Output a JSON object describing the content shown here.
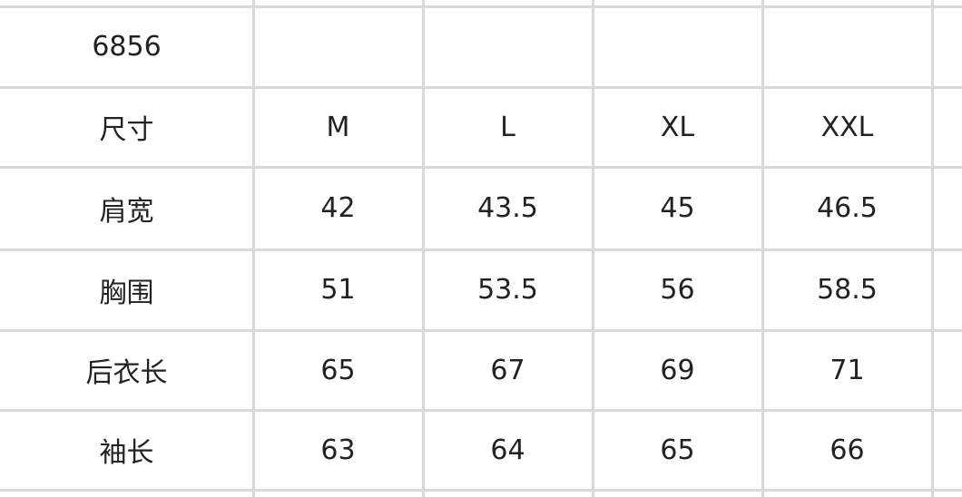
{
  "table": {
    "title": "6856",
    "header": [
      "尺寸",
      "M",
      "L",
      "XL",
      "XXL"
    ],
    "rows": [
      [
        "肩宽",
        "42",
        "43.5",
        "45",
        "46.5"
      ],
      [
        "胸围",
        "51",
        "53.5",
        "56",
        "58.5"
      ],
      [
        "后衣长",
        "65",
        "67",
        "69",
        "71"
      ],
      [
        "袖长",
        "63",
        "64",
        "65",
        "66"
      ]
    ]
  }
}
